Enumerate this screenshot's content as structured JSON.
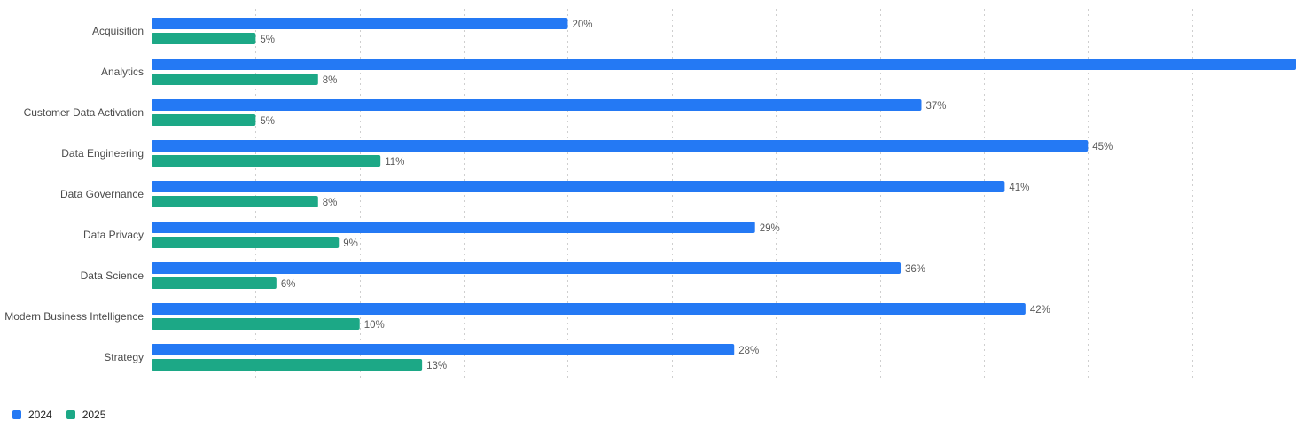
{
  "chart_data": {
    "type": "bar",
    "orientation": "horizontal",
    "categories": [
      "Acquisition",
      "Analytics",
      "Customer Data Activation",
      "Data Engineering",
      "Data Governance",
      "Data Privacy",
      "Data Science",
      "Modern Business Intelligence",
      "Strategy"
    ],
    "series": [
      {
        "name": "2024",
        "color": "#2479f4",
        "values": [
          20,
          55,
          37,
          45,
          41,
          29,
          36,
          42,
          28
        ],
        "labels": [
          "20%",
          "",
          "37%",
          "45%",
          "41%",
          "29%",
          "36%",
          "42%",
          "28%"
        ]
      },
      {
        "name": "2025",
        "color": "#1ca886",
        "values": [
          5,
          8,
          5,
          11,
          8,
          9,
          6,
          10,
          13
        ],
        "labels": [
          "5%",
          "8%",
          "5%",
          "11%",
          "8%",
          "9%",
          "6%",
          "10%",
          "13%"
        ]
      }
    ],
    "xlim": [
      0,
      55
    ],
    "grid": true,
    "legend_position": "bottom-left",
    "title": "",
    "xlabel": "",
    "ylabel": ""
  }
}
